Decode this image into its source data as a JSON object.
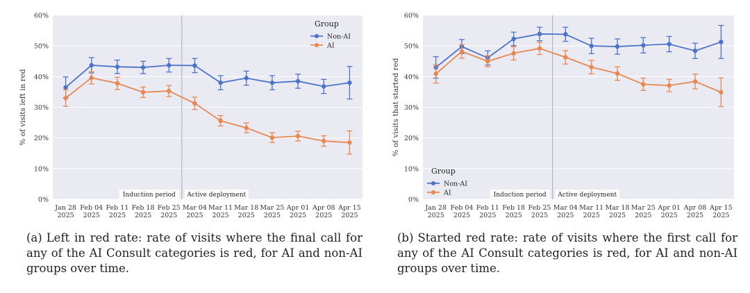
{
  "chart_data": [
    {
      "type": "line",
      "panel": "a",
      "caption_label": "(a)",
      "caption": "Left in red rate: rate of visits where the final call for any of the AI Consult categories is red, for AI and non-AI groups over time.",
      "ylabel": "% of visits left in red",
      "ylim": [
        0,
        60
      ],
      "yticks": [
        "0%",
        "10%",
        "20%",
        "30%",
        "40%",
        "50%",
        "60%"
      ],
      "categories": [
        [
          "Jan 28",
          "2025"
        ],
        [
          "Feb 04",
          "2025"
        ],
        [
          "Feb 11",
          "2025"
        ],
        [
          "Feb 18",
          "2025"
        ],
        [
          "Feb 25",
          "2025"
        ],
        [
          "Mar 04",
          "2025"
        ],
        [
          "Mar 11",
          "2025"
        ],
        [
          "Mar 18",
          "2025"
        ],
        [
          "Mar 25",
          "2025"
        ],
        [
          "Apr 01",
          "2025"
        ],
        [
          "Apr 08",
          "2025"
        ],
        [
          "Apr 15",
          "2025"
        ]
      ],
      "periods": [
        "Induction period",
        "Active deployment"
      ],
      "legend": {
        "title": "Group",
        "position": "top-right"
      },
      "grid": true,
      "series": [
        {
          "name": "Non-AI",
          "color": "#4c72c9",
          "values": [
            36.5,
            43.7,
            43.2,
            43.0,
            43.7,
            43.6,
            38.0,
            39.5,
            38.0,
            38.5,
            36.8,
            38.0
          ],
          "err": [
            3.4,
            2.5,
            2.2,
            2.0,
            2.2,
            2.3,
            2.3,
            2.3,
            2.3,
            2.3,
            2.3,
            5.3
          ]
        },
        {
          "name": "AI",
          "color": "#e8874f",
          "values": [
            33.0,
            39.6,
            37.8,
            34.9,
            35.3,
            31.3,
            25.6,
            23.3,
            20.1,
            20.6,
            19.0,
            18.5
          ],
          "err": [
            2.7,
            2.0,
            2.0,
            1.7,
            1.8,
            2.0,
            1.7,
            1.6,
            1.6,
            1.6,
            1.7,
            3.8
          ]
        }
      ]
    },
    {
      "type": "line",
      "panel": "b",
      "caption_label": "(b)",
      "caption": "Started red rate: rate of visits where the first call for any of the AI Consult categories is red, for AI and non-AI groups over time.",
      "ylabel": "% of visits that started red",
      "ylim": [
        0,
        60
      ],
      "yticks": [
        "0%",
        "10%",
        "20%",
        "30%",
        "40%",
        "50%",
        "60%"
      ],
      "categories": [
        [
          "Jan 28",
          "2025"
        ],
        [
          "Feb 04",
          "2025"
        ],
        [
          "Feb 11",
          "2025"
        ],
        [
          "Feb 18",
          "2025"
        ],
        [
          "Feb 25",
          "2025"
        ],
        [
          "Mar 04",
          "2025"
        ],
        [
          "Mar 11",
          "2025"
        ],
        [
          "Mar 18",
          "2025"
        ],
        [
          "Mar 25",
          "2025"
        ],
        [
          "Apr 01",
          "2025"
        ],
        [
          "Apr 08",
          "2025"
        ],
        [
          "Apr 15",
          "2025"
        ]
      ],
      "periods": [
        "Induction period",
        "Active deployment"
      ],
      "legend": {
        "title": "Group",
        "position": "bottom-left"
      },
      "grid": true,
      "series": [
        {
          "name": "Non-AI",
          "color": "#4c72c9",
          "values": [
            43.0,
            49.8,
            46.1,
            52.3,
            53.9,
            53.8,
            50.0,
            49.8,
            50.2,
            50.6,
            48.4,
            51.3
          ],
          "err": [
            3.5,
            2.3,
            2.3,
            2.2,
            2.2,
            2.3,
            2.5,
            2.5,
            2.5,
            2.5,
            2.5,
            5.4
          ]
        },
        {
          "name": "AI",
          "color": "#e8874f",
          "values": [
            40.9,
            48.2,
            45.0,
            47.6,
            49.2,
            46.3,
            43.1,
            41.0,
            37.5,
            37.1,
            38.4,
            34.9
          ],
          "err": [
            3.0,
            2.2,
            1.8,
            2.2,
            2.0,
            2.2,
            2.2,
            2.2,
            2.0,
            2.0,
            2.4,
            4.7
          ]
        }
      ]
    }
  ]
}
